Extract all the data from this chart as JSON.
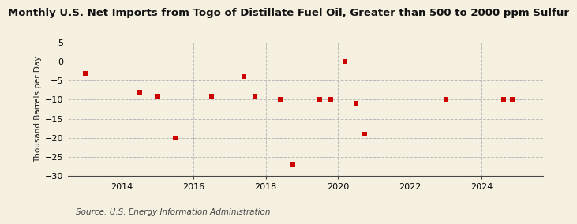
{
  "title": "Monthly U.S. Net Imports from Togo of Distillate Fuel Oil, Greater than 500 to 2000 ppm Sulfur",
  "ylabel": "Thousand Barrels per Day",
  "source": "Source: U.S. Energy Information Administration",
  "background_color": "#f5f0e0",
  "scatter_color": "#cc0000",
  "grid_color": "#bbbbbb",
  "xlim": [
    2012.5,
    2025.7
  ],
  "ylim": [
    -30,
    5
  ],
  "yticks": [
    5,
    0,
    -5,
    -10,
    -15,
    -20,
    -25,
    -30
  ],
  "xticks": [
    2014,
    2016,
    2018,
    2020,
    2022,
    2024
  ],
  "data_x": [
    2013.0,
    2014.5,
    2015.0,
    2015.5,
    2016.5,
    2017.4,
    2017.7,
    2018.4,
    2018.75,
    2019.5,
    2019.8,
    2020.2,
    2020.5,
    2020.75,
    2023.0,
    2024.6,
    2024.85
  ],
  "data_y": [
    -3,
    -8,
    -9,
    -20,
    -9,
    -4,
    -9,
    -10,
    -27,
    -10,
    -10,
    0,
    -11,
    -19,
    -10,
    -10,
    -10
  ]
}
